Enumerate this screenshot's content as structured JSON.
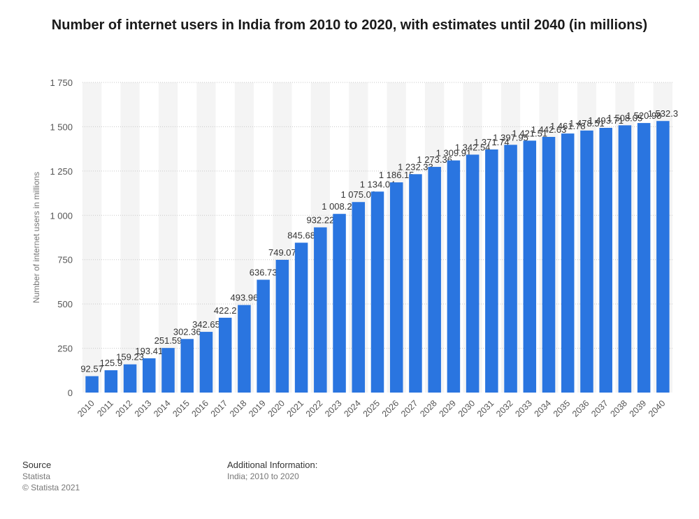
{
  "chart_data": {
    "type": "bar",
    "title": "Number of internet users in India from 2010 to 2020, with estimates until 2040 (in millions)",
    "xlabel": "",
    "ylabel": "Number of internet users in millions",
    "ylim": [
      0,
      1750
    ],
    "yticks": [
      0,
      250,
      500,
      750,
      1000,
      1250,
      1500,
      1750
    ],
    "ytick_labels": [
      "0",
      "250",
      "500",
      "750",
      "1 000",
      "1 250",
      "1 500",
      "1 750"
    ],
    "grid": true,
    "categories": [
      "2010",
      "2011",
      "2012",
      "2013",
      "2014",
      "2015",
      "2016",
      "2017",
      "2018",
      "2019",
      "2020",
      "2021",
      "2022",
      "2023",
      "2024",
      "2025",
      "2026",
      "2027",
      "2028",
      "2029",
      "2030",
      "2031",
      "2032",
      "2033",
      "2034",
      "2035",
      "2036",
      "2037",
      "2038",
      "2039",
      "2040"
    ],
    "values": [
      92.57,
      125.9,
      159.23,
      193.41,
      251.59,
      302.36,
      342.65,
      422.2,
      493.96,
      636.73,
      749.07,
      845.68,
      932.22,
      1008.21,
      1075.08,
      1134.04,
      1186.15,
      1232.33,
      1273.36,
      1309.91,
      1342.54,
      1371.74,
      1397.95,
      1421.51,
      1442.63,
      1461.78,
      1478.51,
      1493.71,
      1508.05,
      1520.98,
      1532.3
    ],
    "labels": [
      "92.57",
      "125.9",
      "159.23",
      "193.41",
      "251.59",
      "302.36",
      "342.65",
      "422.2",
      "493.96",
      "636.73",
      "749.07",
      "845.68",
      "932.22",
      "1 008.21",
      "1 075.08",
      "1 134.04",
      "1 186.15",
      "1 232.33",
      "1 273.36",
      "1 309.91",
      "1 342.54",
      "1 371.74",
      "1 397.95",
      "1 421.51",
      "1 442.63",
      "1 461.78",
      "1 478.51",
      "1 493.71",
      "1 508.05",
      "1 520.98",
      "1 532.3"
    ],
    "bar_color": "#2a75e0"
  },
  "footer": {
    "source_heading": "Source",
    "source_name": "Statista",
    "copyright": "© Statista 2021",
    "info_heading": "Additional Information:",
    "info_text": "India; 2010 to 2020"
  }
}
